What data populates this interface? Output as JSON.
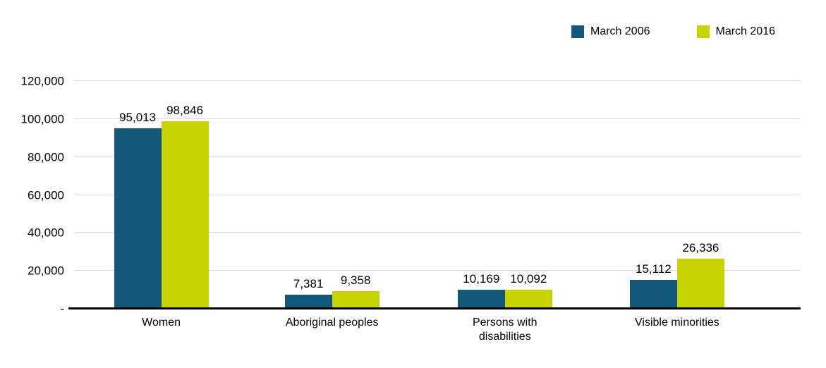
{
  "legend": [
    {
      "label": "March 2006",
      "color": "#12587a"
    },
    {
      "label": "March 2016",
      "color": "#c8d400"
    }
  ],
  "chart_data": {
    "type": "bar",
    "categories": [
      "Women",
      "Aboriginal peoples",
      "Persons with disabilities",
      "Visible minorities"
    ],
    "series": [
      {
        "name": "March 2006",
        "color": "#12587a",
        "values": [
          95013,
          7381,
          10169,
          15112
        ],
        "labels": [
          "95,013",
          "7,381",
          "10,169",
          "15,112"
        ]
      },
      {
        "name": "March 2016",
        "color": "#c8d400",
        "values": [
          98846,
          9358,
          10092,
          26336
        ],
        "labels": [
          "98,846",
          "9,358",
          "10,092",
          "26,336"
        ]
      }
    ],
    "title": "",
    "xlabel": "",
    "ylabel": "",
    "ylim": [
      0,
      120000
    ],
    "yticks": [
      {
        "value": 0,
        "label": "-"
      },
      {
        "value": 20000,
        "label": "20,000"
      },
      {
        "value": 40000,
        "label": "40,000"
      },
      {
        "value": 60000,
        "label": "60,000"
      },
      {
        "value": 80000,
        "label": "80,000"
      },
      {
        "value": 100000,
        "label": "100,000"
      },
      {
        "value": 120000,
        "label": "120,000"
      }
    ],
    "grid": true,
    "legend_position": "top-right"
  }
}
